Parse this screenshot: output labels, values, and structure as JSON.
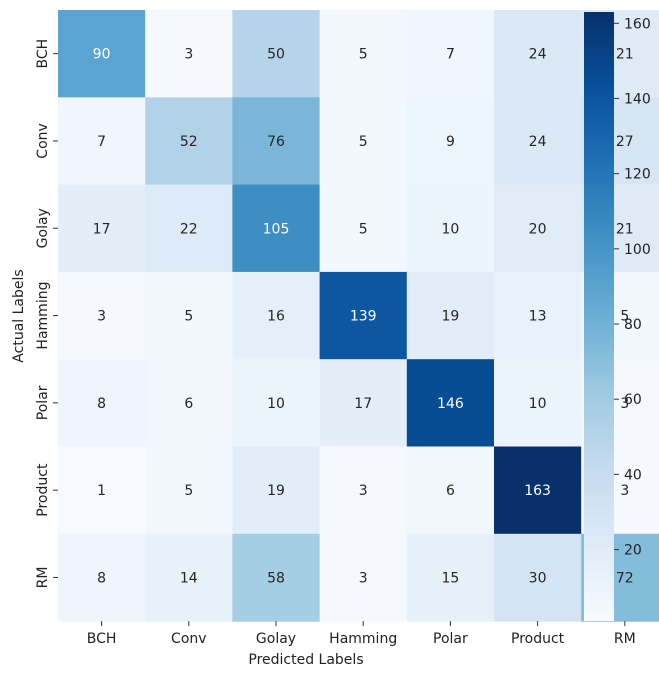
{
  "chart_data": {
    "type": "heatmap",
    "title": "",
    "xlabel": "Predicted Labels",
    "ylabel": "Actual Labels",
    "x_categories": [
      "BCH",
      "Conv",
      "Golay",
      "Hamming",
      "Polar",
      "Product",
      "RM"
    ],
    "y_categories": [
      "BCH",
      "Conv",
      "Golay",
      "Hamming",
      "Polar",
      "Product",
      "RM"
    ],
    "values": [
      [
        90,
        3,
        50,
        5,
        7,
        24,
        21
      ],
      [
        7,
        52,
        76,
        5,
        9,
        24,
        27
      ],
      [
        17,
        22,
        105,
        5,
        10,
        20,
        21
      ],
      [
        3,
        5,
        16,
        139,
        19,
        13,
        5
      ],
      [
        8,
        6,
        10,
        17,
        146,
        10,
        3
      ],
      [
        1,
        5,
        19,
        3,
        6,
        163,
        3
      ],
      [
        8,
        14,
        58,
        3,
        15,
        30,
        72
      ]
    ],
    "colormap": "Blues",
    "color_range": [
      1,
      163
    ],
    "colorbar_ticks": [
      20,
      40,
      60,
      80,
      100,
      120,
      140,
      160
    ]
  }
}
